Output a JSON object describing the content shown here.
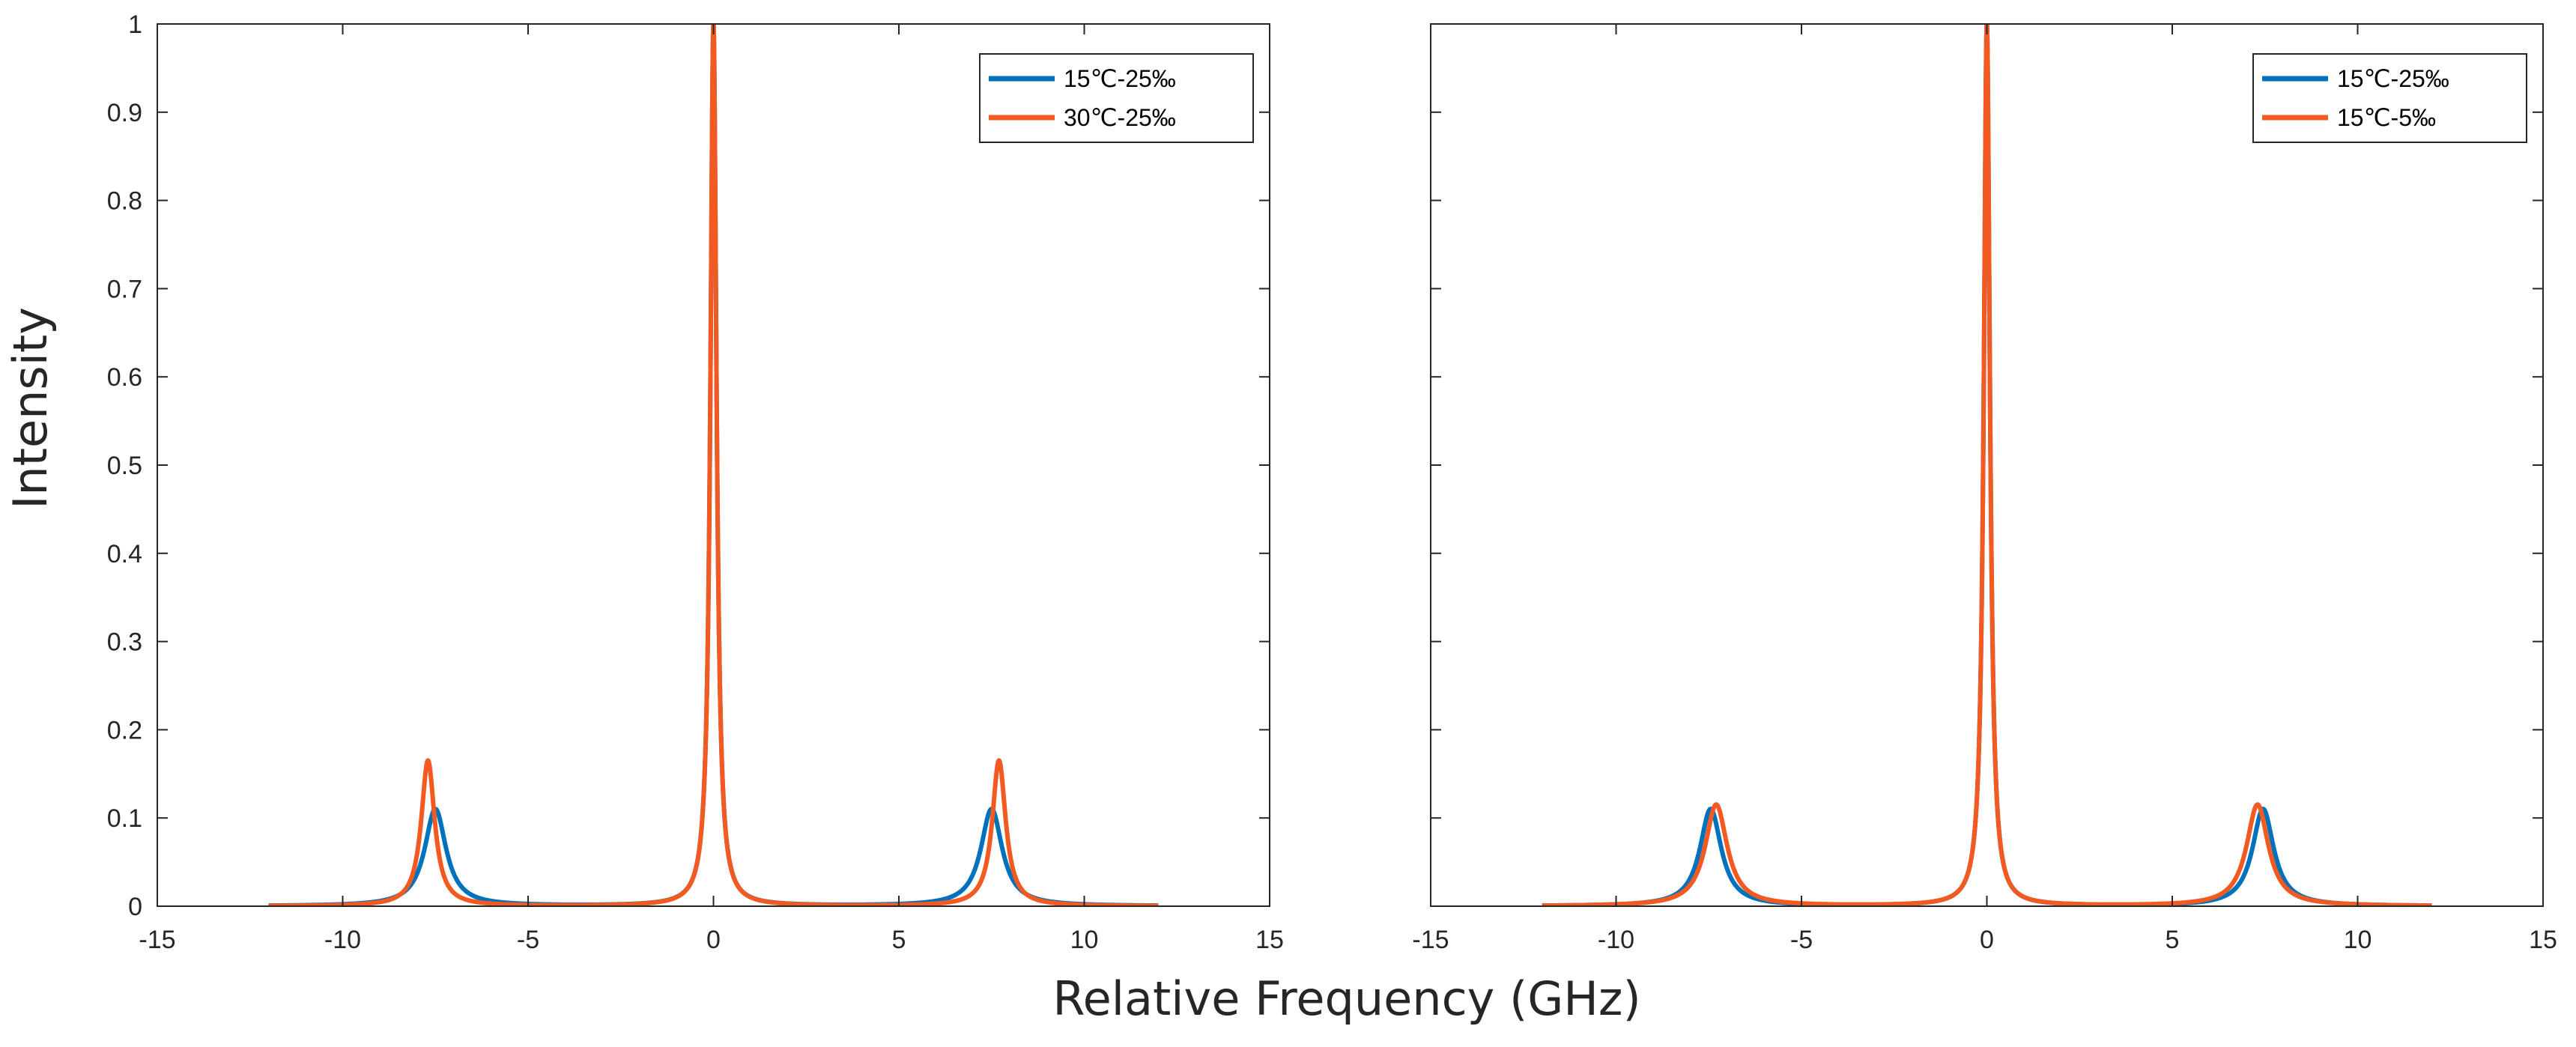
{
  "figure": {
    "ylabel": "Intensity",
    "xlabel": "Relative Frequency (GHz)"
  },
  "colors": {
    "series1": "#0072BD",
    "series2": "#F25A22",
    "axis": "#262626"
  },
  "chart_data": [
    {
      "type": "line",
      "title": "",
      "xlabel": "Relative Frequency (GHz)",
      "ylabel": "Intensity",
      "xlim": [
        -15,
        15
      ],
      "ylim": [
        0,
        1
      ],
      "xticks": [
        -15,
        -10,
        -5,
        0,
        5,
        10,
        15
      ],
      "xtick_labels": [
        "-15",
        "-10",
        "-5",
        "0",
        "5",
        "10",
        "15"
      ],
      "yticks": [
        0,
        0.1,
        0.2,
        0.3,
        0.4,
        0.5,
        0.6,
        0.7,
        0.8,
        0.9,
        1
      ],
      "ytick_labels": [
        "0",
        "0.1",
        "0.2",
        "0.3",
        "0.4",
        "0.5",
        "0.6",
        "0.7",
        "0.8",
        "0.9",
        "1"
      ],
      "x_range": [
        -12,
        12
      ],
      "legend_position": "top-right",
      "series": [
        {
          "name": "15℃-25‰",
          "color": "#0072BD",
          "peaks": [
            {
              "center": -7.5,
              "height": 0.11,
              "hwhm": 0.35
            },
            {
              "center": 0,
              "height": 1.0,
              "hwhm": 0.1
            },
            {
              "center": 7.5,
              "height": 0.11,
              "hwhm": 0.35
            }
          ]
        },
        {
          "name": "30℃-25‰",
          "color": "#F25A22",
          "peaks": [
            {
              "center": -7.7,
              "height": 0.165,
              "hwhm": 0.22
            },
            {
              "center": 0,
              "height": 1.0,
              "hwhm": 0.1
            },
            {
              "center": 7.7,
              "height": 0.165,
              "hwhm": 0.22
            }
          ]
        }
      ]
    },
    {
      "type": "line",
      "title": "",
      "xlabel": "Relative Frequency (GHz)",
      "ylabel": "",
      "xlim": [
        -15,
        15
      ],
      "ylim": [
        0,
        1
      ],
      "xticks": [
        -15,
        -10,
        -5,
        0,
        5,
        10,
        15
      ],
      "xtick_labels": [
        "-15",
        "-10",
        "-5",
        "0",
        "5",
        "10",
        "15"
      ],
      "yticks": [
        0,
        0.1,
        0.2,
        0.3,
        0.4,
        0.5,
        0.6,
        0.7,
        0.8,
        0.9,
        1
      ],
      "ytick_labels": [],
      "x_range": [
        -12,
        12
      ],
      "legend_position": "top-right",
      "series": [
        {
          "name": "15℃-25‰",
          "color": "#0072BD",
          "peaks": [
            {
              "center": -7.45,
              "height": 0.11,
              "hwhm": 0.35
            },
            {
              "center": 0,
              "height": 1.0,
              "hwhm": 0.1
            },
            {
              "center": 7.45,
              "height": 0.11,
              "hwhm": 0.35
            }
          ]
        },
        {
          "name": "15℃-5‰",
          "color": "#F25A22",
          "peaks": [
            {
              "center": -7.3,
              "height": 0.115,
              "hwhm": 0.36
            },
            {
              "center": 0,
              "height": 1.0,
              "hwhm": 0.1
            },
            {
              "center": 7.3,
              "height": 0.115,
              "hwhm": 0.36
            }
          ]
        }
      ]
    }
  ]
}
